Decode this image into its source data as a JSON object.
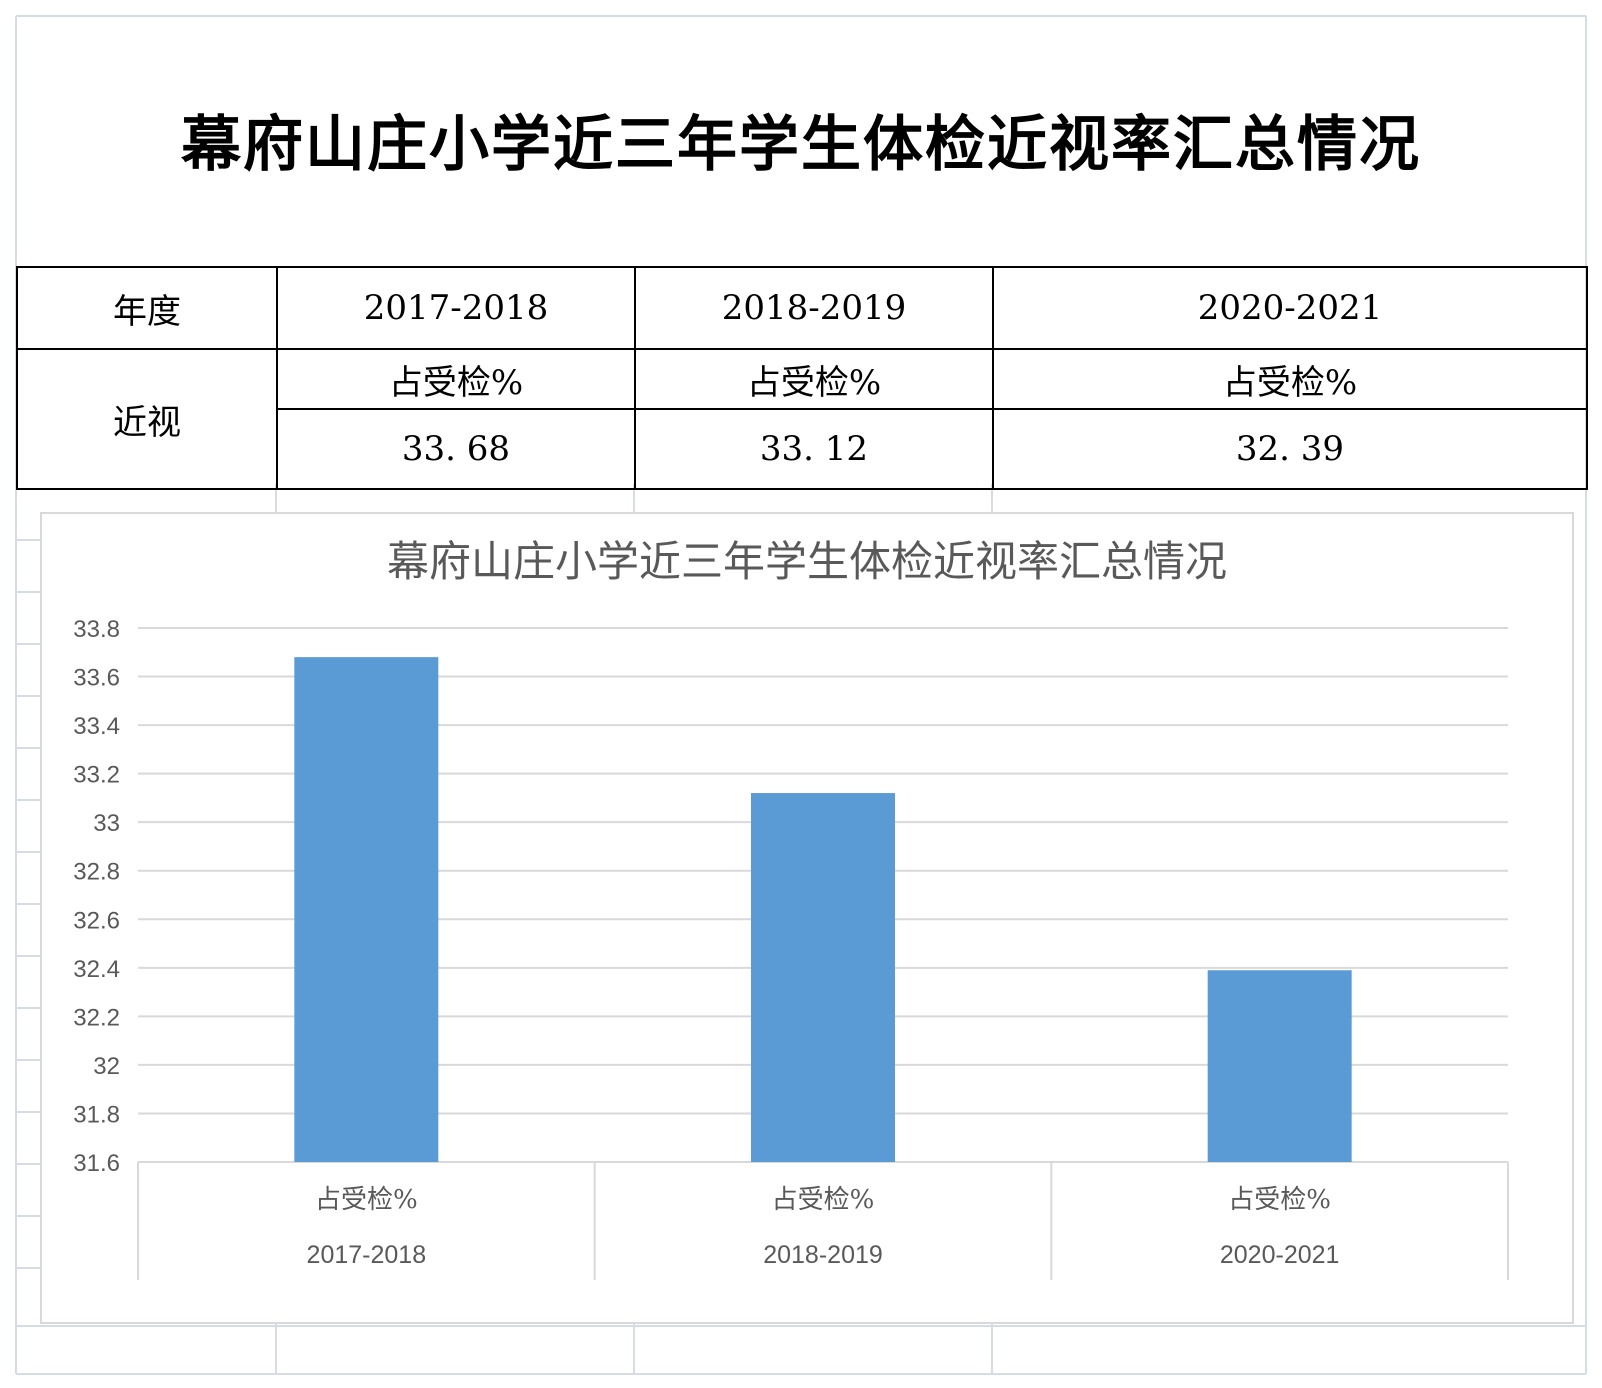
{
  "page": {
    "title": "幕府山庄小学近三年学生体检近视率汇总情况"
  },
  "table": {
    "year_header": "年度",
    "row_label": "近视",
    "years": [
      "2017-2018",
      "2018-2019",
      "2020-2021"
    ],
    "sub_header": "占受检%",
    "values": [
      "33. 68",
      "33. 12",
      "32. 39"
    ]
  },
  "chart_data": {
    "type": "bar",
    "title": "幕府山庄小学近三年学生体检近视率汇总情况",
    "xlabel": "",
    "ylabel": "",
    "categories": [
      "2017-2018",
      "2018-2019",
      "2020-2021"
    ],
    "category_sublabel": "占受检%",
    "series": [
      {
        "values": [
          33.68,
          33.12,
          32.39
        ]
      }
    ],
    "ylim": [
      31.6,
      33.8
    ],
    "yticks": [
      "31.6",
      "31.8",
      "32",
      "32.2",
      "32.4",
      "32.6",
      "32.8",
      "33",
      "33.2",
      "33.4",
      "33.6",
      "33.8"
    ],
    "grid": true,
    "bar_color": "#5B9BD5"
  }
}
